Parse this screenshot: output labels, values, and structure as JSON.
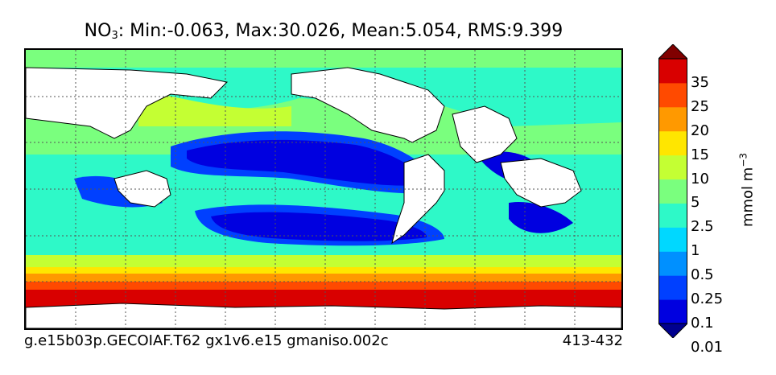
{
  "title": {
    "species": "NO",
    "subscript": "3",
    "stats": ": Min:-0.063, Max:30.026, Mean:5.054, RMS:9.399"
  },
  "caption": {
    "case": "g.e15b03p.GECOIAF.T62 gx1v6.e15 gmaniso.002c",
    "years": "413-432"
  },
  "colorbar": {
    "units_base": "mmol m",
    "units_exp": "−3",
    "labels": [
      "35",
      "25",
      "20",
      "15",
      "10",
      "5",
      "2.5",
      "1",
      "0.5",
      "0.25",
      "0.1",
      "0.01"
    ],
    "colors": [
      "#00008f",
      "#0000e0",
      "#0040ff",
      "#0090ff",
      "#00d8ff",
      "#2ef9c8",
      "#7aff7e",
      "#c4ff33",
      "#ffe600",
      "#ff9900",
      "#ff4a00",
      "#d90000",
      "#800000"
    ]
  },
  "map": {
    "land_color": "#ffffff",
    "gridline_style": "dotted"
  }
}
